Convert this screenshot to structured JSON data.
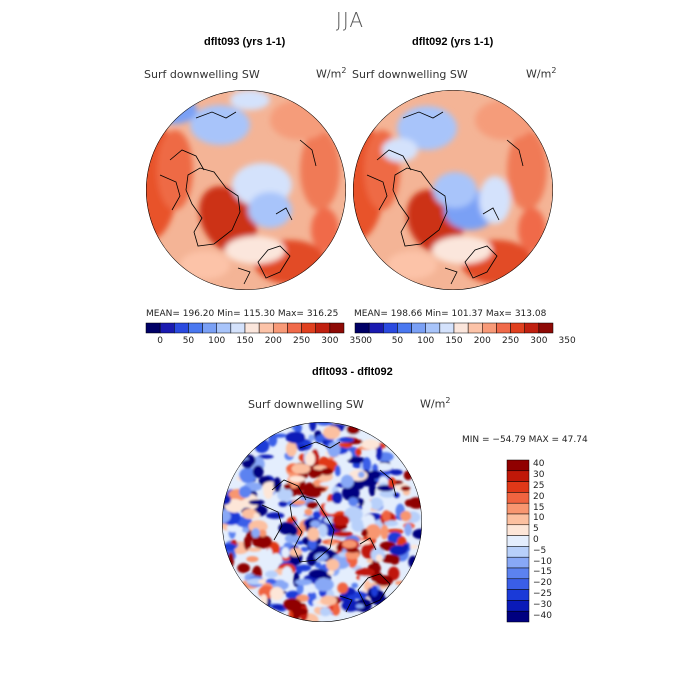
{
  "figure": {
    "season": "JJA"
  },
  "panels": [
    {
      "id": "p1",
      "title": "dflt093 (yrs 1-1)",
      "variable": "Surf downwelling SW",
      "units": "W/m",
      "units_exp": "2",
      "stats": "MEAN= 196.20   Min= 115.30   Max= 316.25"
    },
    {
      "id": "p2",
      "title": "dflt092 (yrs 1-1)",
      "variable": "Surf downwelling SW",
      "units": "W/m",
      "units_exp": "2",
      "stats": "MEAN= 198.66   Min= 101.37   Max= 313.08"
    },
    {
      "id": "p3",
      "title": "dflt093 - dflt092",
      "variable": "Surf downwelling SW",
      "units": "W/m",
      "units_exp": "2",
      "stats": "MIN = −54.79 MAX =  47.74"
    }
  ],
  "chart_data": [
    {
      "type": "heatmap",
      "projection": "north-polar-stereographic",
      "title": "dflt093 (yrs 1-1)",
      "variable": "Surf downwelling SW",
      "units": "W/m2",
      "summary": {
        "mean": 196.2,
        "min": 115.3,
        "max": 316.25
      },
      "colorbar": {
        "levels": [
          0,
          25,
          50,
          75,
          100,
          125,
          150,
          175,
          200,
          225,
          250,
          275,
          300,
          325,
          350
        ],
        "tick_labels": [
          "0",
          "50",
          "100",
          "150",
          "200",
          "250",
          "300",
          "350"
        ],
        "colors": [
          "#000066",
          "#1a1ab0",
          "#2a4ae0",
          "#4a78f0",
          "#7aa0f5",
          "#a8c4fa",
          "#d4e2fc",
          "#fbe6dc",
          "#fcc3a8",
          "#f89a78",
          "#f06a4a",
          "#e0401f",
          "#c02010",
          "#8e0a06"
        ]
      }
    },
    {
      "type": "heatmap",
      "projection": "north-polar-stereographic",
      "title": "dflt092 (yrs 1-1)",
      "variable": "Surf downwelling SW",
      "units": "W/m2",
      "summary": {
        "mean": 198.66,
        "min": 101.37,
        "max": 313.08
      },
      "colorbar": {
        "levels": [
          0,
          25,
          50,
          75,
          100,
          125,
          150,
          175,
          200,
          225,
          250,
          275,
          300,
          325,
          350
        ],
        "tick_labels": [
          "0",
          "50",
          "100",
          "150",
          "200",
          "250",
          "300",
          "350"
        ],
        "colors": [
          "#000066",
          "#1a1ab0",
          "#2a4ae0",
          "#4a78f0",
          "#7aa0f5",
          "#a8c4fa",
          "#d4e2fc",
          "#fbe6dc",
          "#fcc3a8",
          "#f89a78",
          "#f06a4a",
          "#e0401f",
          "#c02010",
          "#8e0a06"
        ]
      }
    },
    {
      "type": "heatmap",
      "projection": "north-polar-stereographic",
      "title": "dflt093 - dflt092",
      "variable": "Surf downwelling SW",
      "units": "W/m2",
      "summary": {
        "min": -54.79,
        "max": 47.74
      },
      "colorbar": {
        "orientation": "vertical",
        "levels": [
          -40,
          -30,
          -25,
          -20,
          -15,
          -10,
          -5,
          0,
          5,
          10,
          15,
          20,
          25,
          30,
          40
        ],
        "tick_labels": [
          "40",
          "30",
          "25",
          "20",
          "15",
          "10",
          "5",
          "0",
          "−5",
          "−10",
          "−15",
          "−20",
          "−25",
          "−30",
          "−40"
        ],
        "colors": [
          "#000080",
          "#0a1ab8",
          "#1a3ad8",
          "#3a5ee8",
          "#5c82f0",
          "#88a8f6",
          "#b8d0fa",
          "#e4eefd",
          "#fde6d8",
          "#fcc0a0",
          "#f89670",
          "#f06440",
          "#e03818",
          "#c01808",
          "#900000"
        ]
      }
    }
  ]
}
